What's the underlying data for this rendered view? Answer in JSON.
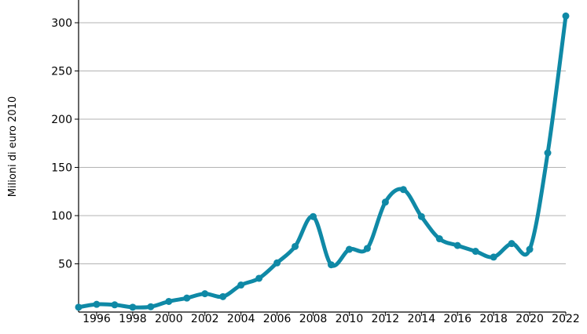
{
  "chart_data": {
    "type": "line",
    "ylabel": "Milioni di euro 2010",
    "xlabel": "",
    "title": "",
    "ylim": [
      0,
      325
    ],
    "xlim": [
      1995,
      2022
    ],
    "grid": true,
    "line_color": "#0f89a6",
    "grid_color": "#b3b3b3",
    "y_ticks": [
      50,
      100,
      150,
      200,
      250,
      300
    ],
    "x_ticks": [
      1996,
      1998,
      2000,
      2002,
      2004,
      2006,
      2008,
      2010,
      2012,
      2014,
      2016,
      2018,
      2020,
      2022
    ],
    "x": [
      1995,
      1996,
      1997,
      1998,
      1999,
      2000,
      2001,
      2002,
      2003,
      2004,
      2005,
      2006,
      2007,
      2008,
      2009,
      2010,
      2011,
      2012,
      2013,
      2014,
      2015,
      2016,
      2017,
      2018,
      2019,
      2020,
      2021,
      2022
    ],
    "values": [
      5,
      8,
      7.5,
      5,
      5.5,
      11,
      14.5,
      19,
      16,
      28,
      35,
      51,
      68,
      99,
      49,
      65,
      66,
      114,
      127,
      99,
      76,
      69,
      63,
      57,
      71,
      65,
      165,
      307
    ]
  }
}
